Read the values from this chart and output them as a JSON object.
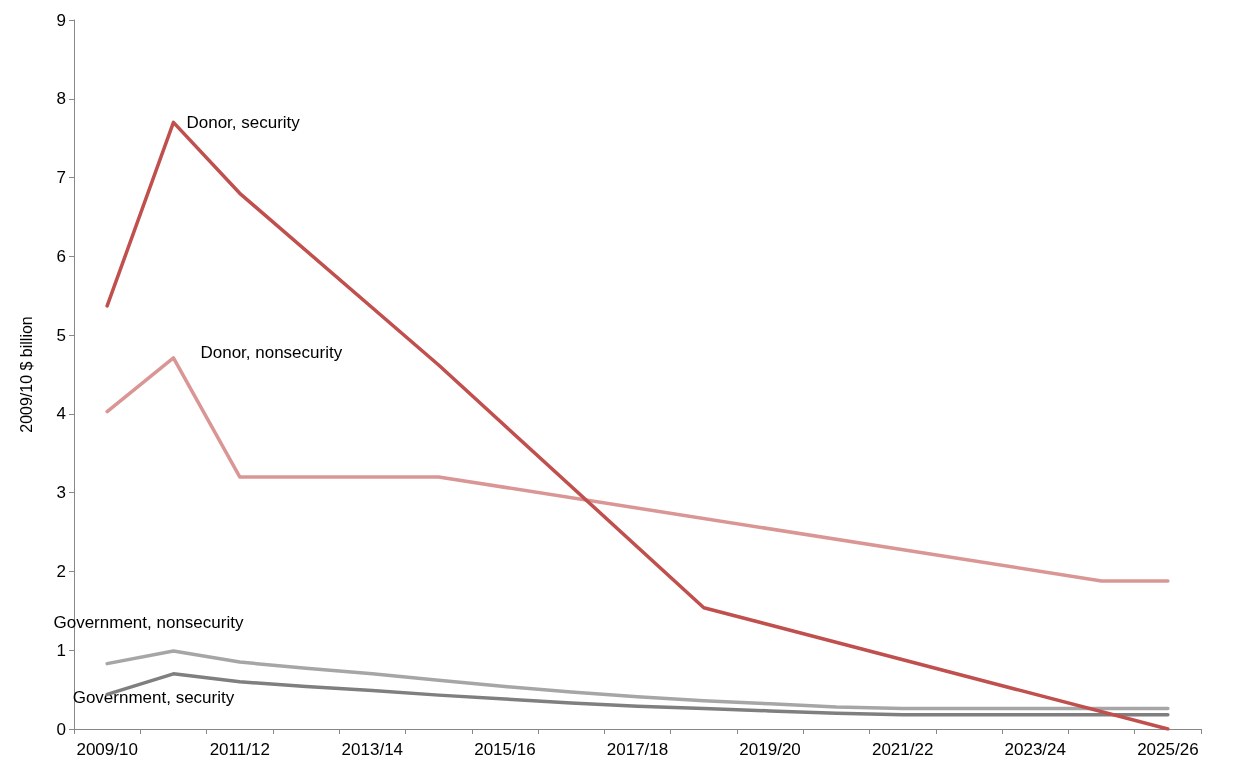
{
  "chart_data": {
    "type": "line",
    "ylabel": "2009/10 $ billion",
    "categories": [
      "2009/10",
      null,
      "2011/12",
      null,
      "2013/14",
      null,
      "2015/16",
      null,
      "2017/18",
      null,
      "2019/20",
      null,
      "2021/22",
      null,
      "2023/24",
      null,
      "2025/26"
    ],
    "series": [
      {
        "name": "Donor, security",
        "color": "#c0504d",
        "values": [
          5.37,
          7.7,
          6.8,
          null,
          null,
          4.62,
          null,
          null,
          null,
          1.54,
          null,
          null,
          null,
          null,
          null,
          null,
          0
        ]
      },
      {
        "name": "Donor, nonsecurity",
        "color": "#d99694",
        "values": [
          4.03,
          4.71,
          3.2,
          3.2,
          3.2,
          3.2,
          null,
          null,
          null,
          null,
          null,
          null,
          null,
          null,
          null,
          1.88,
          1.88
        ]
      },
      {
        "name": "Government, nonsecurity",
        "color": "#a6a6a6",
        "values": [
          0.83,
          0.99,
          0.85,
          0.77,
          0.7,
          0.62,
          0.54,
          0.47,
          0.41,
          0.36,
          0.32,
          0.28,
          0.26,
          0.26,
          0.26,
          0.26,
          0.26
        ]
      },
      {
        "name": "Government, security",
        "color": "#7f7f7f",
        "values": [
          0.44,
          0.7,
          0.6,
          0.54,
          0.49,
          0.43,
          0.38,
          0.33,
          0.29,
          0.26,
          0.23,
          0.2,
          0.18,
          0.18,
          0.18,
          0.18,
          0.18
        ]
      }
    ],
    "ylim": [
      0,
      9
    ],
    "yticks": [
      0,
      1,
      2,
      3,
      4,
      5,
      6,
      7,
      8,
      9
    ],
    "grid": false,
    "legend": false,
    "marker": "none",
    "line_style": "solid"
  }
}
